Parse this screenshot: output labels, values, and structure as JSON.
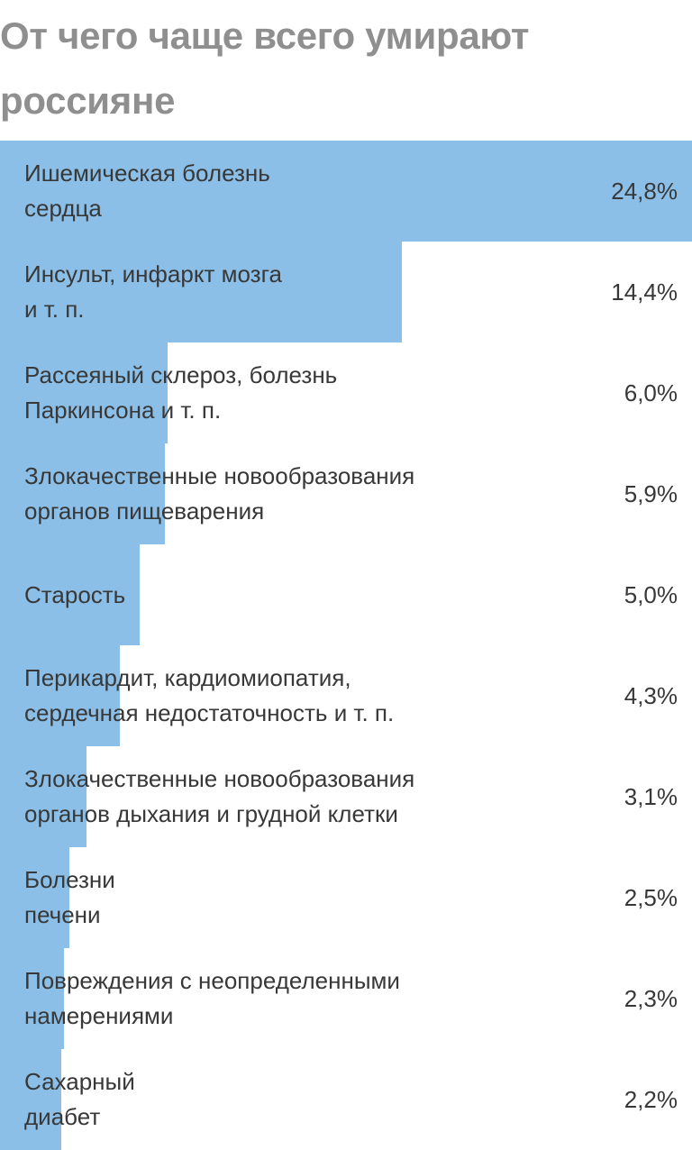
{
  "title": "От чего чаще всего умирают россияне",
  "colors": {
    "bar": "#8bbfe7",
    "title": "#8f8f8f",
    "text": "#383838"
  },
  "chart_data": {
    "type": "bar",
    "orientation": "horizontal",
    "title": "От чего чаще всего умирают россияне",
    "categories": [
      [
        "Ишемическая болезнь",
        "сердца"
      ],
      [
        "Инсульт, инфаркт мозга",
        "и т. п."
      ],
      [
        "Рассеяный склероз, болезнь",
        "Паркинсона и т. п."
      ],
      [
        "Злокачественные новообразования",
        "органов пищеварения"
      ],
      [
        "Старость"
      ],
      [
        "Перикардит, кардиомиопатия,",
        "сердечная недостаточность и т. п."
      ],
      [
        "Злокачественные новообразования",
        "органов дыхания и грудной клетки"
      ],
      [
        "Болезни",
        "печени"
      ],
      [
        "Повреждения с неопределенными",
        "намерениями"
      ],
      [
        "Сахарный",
        "диабет"
      ]
    ],
    "values": [
      24.8,
      14.4,
      6.0,
      5.9,
      5.0,
      4.3,
      3.1,
      2.5,
      2.3,
      2.2
    ],
    "value_labels": [
      "24,8%",
      "14,4%",
      "6,0%",
      "5,9%",
      "5,0%",
      "4,3%",
      "3,1%",
      "2,5%",
      "2,3%",
      "2,2%"
    ],
    "unit": "%",
    "xlim": [
      0,
      24.8
    ],
    "grid": false,
    "legend": "none"
  }
}
